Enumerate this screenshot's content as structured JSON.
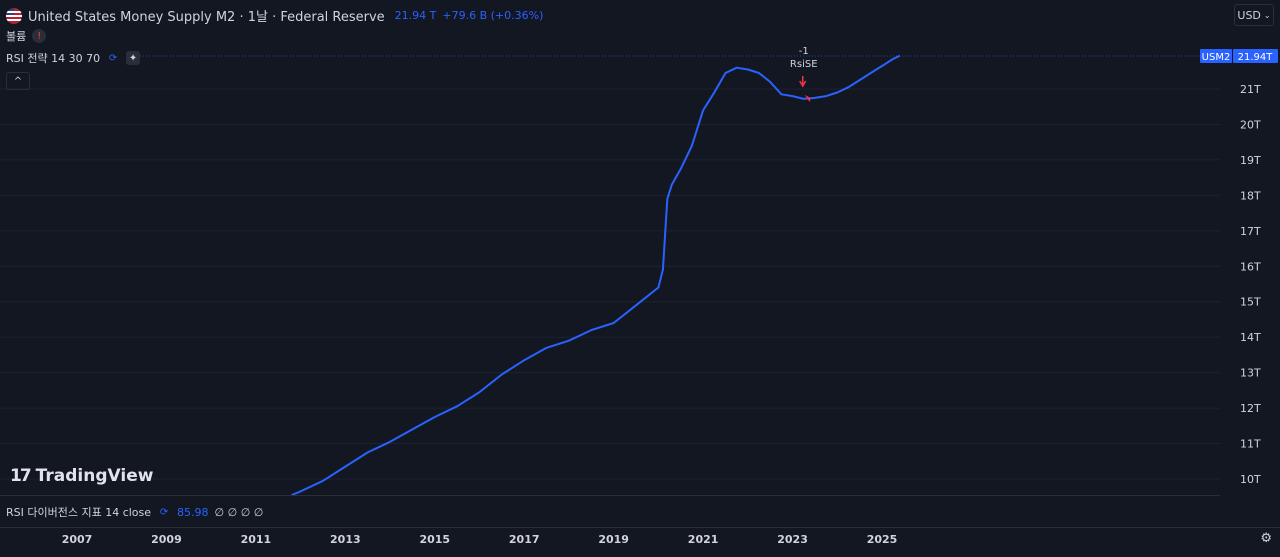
{
  "header": {
    "title": "United States Money Supply M2 · 1날 · Federal Reserve",
    "price": "21.94 T",
    "change": "+79.6 B (+0.36%)",
    "volume_label": "볼륨",
    "warning_icon": "!",
    "strategy_label": "RSI 전략 14 30 70",
    "currency": "USD",
    "collapse_icon": "^"
  },
  "rsi_indicator": {
    "label": "RSI 다이버전스 지표 14 close",
    "value": "85.98",
    "extra": "∅ ∅ ∅ ∅"
  },
  "logo": {
    "text": "TradingView"
  },
  "colors": {
    "background": "#131722",
    "line": "#2962ff",
    "signal": "#f23645",
    "text": "#d1d4dc",
    "grid": "#2a2e39"
  },
  "chart_data": {
    "type": "line",
    "series": [
      {
        "name": "USM2",
        "x": [
          2011.8,
          2012.0,
          2012.5,
          2013.0,
          2013.5,
          2014.0,
          2014.5,
          2015.0,
          2015.5,
          2016.0,
          2016.5,
          2017.0,
          2017.5,
          2018.0,
          2018.5,
          2019.0,
          2019.5,
          2020.0,
          2020.1,
          2020.2,
          2020.3,
          2020.5,
          2020.75,
          2021.0,
          2021.25,
          2021.5,
          2021.75,
          2022.0,
          2022.25,
          2022.5,
          2022.75,
          2023.0,
          2023.25,
          2023.5,
          2023.75,
          2024.0,
          2024.25,
          2024.5,
          2024.75,
          2025.0,
          2025.25,
          2025.4
        ],
        "y": [
          9.55,
          9.65,
          9.95,
          10.35,
          10.75,
          11.05,
          11.4,
          11.75,
          12.05,
          12.45,
          12.95,
          13.35,
          13.7,
          13.9,
          14.2,
          14.4,
          14.9,
          15.4,
          15.9,
          17.9,
          18.3,
          18.75,
          19.4,
          20.4,
          20.9,
          21.45,
          21.6,
          21.55,
          21.45,
          21.2,
          20.85,
          20.8,
          20.72,
          20.75,
          20.8,
          20.9,
          21.05,
          21.25,
          21.45,
          21.65,
          21.85,
          21.94
        ]
      }
    ],
    "xlim": [
      2006,
      2026.6
    ],
    "ylim": [
      9.6,
      22.1
    ],
    "x_ticks": [
      "2007",
      "2009",
      "2011",
      "2013",
      "2015",
      "2017",
      "2019",
      "2021",
      "2023",
      "2025"
    ],
    "y_ticks": [
      "10T",
      "11T",
      "12T",
      "13T",
      "14T",
      "15T",
      "16T",
      "17T",
      "18T",
      "19T",
      "20T",
      "21T"
    ],
    "last_value_tag": {
      "symbol": "USM2",
      "value": "21.94T"
    },
    "annotation": {
      "text": "RsiSE",
      "number": "-1",
      "x": 2023.25,
      "y": 21.2
    },
    "grid": true
  }
}
